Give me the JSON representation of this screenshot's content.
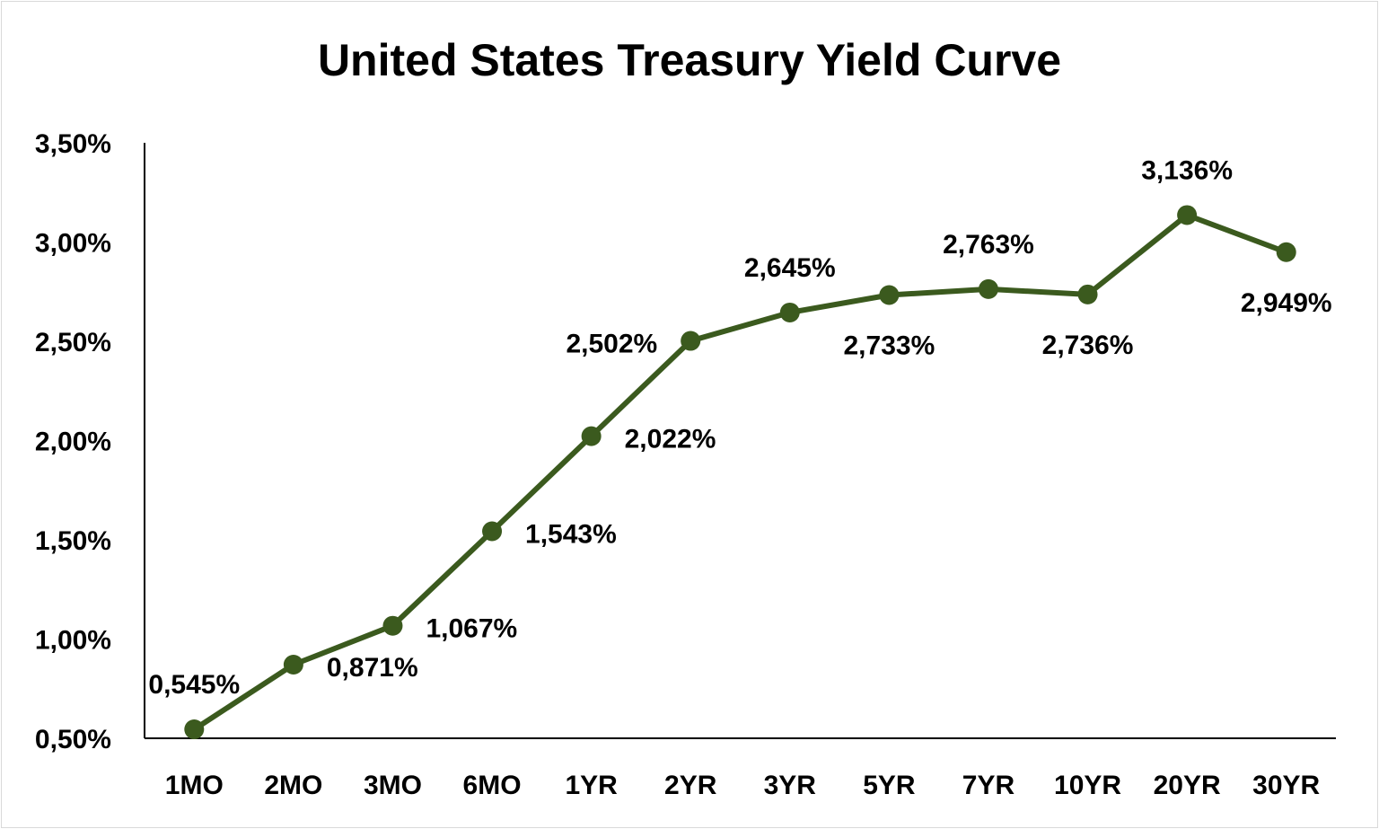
{
  "chart_data": {
    "type": "line",
    "title": "United States Treasury Yield Curve",
    "xlabel": "",
    "ylabel": "",
    "categories": [
      "1MO",
      "2MO",
      "3MO",
      "6MO",
      "1YR",
      "2YR",
      "3YR",
      "5YR",
      "7YR",
      "10YR",
      "20YR",
      "30YR"
    ],
    "series": [
      {
        "values": [
          0.545,
          0.871,
          1.067,
          1.543,
          2.022,
          2.502,
          2.645,
          2.733,
          2.763,
          2.736,
          3.136,
          2.949
        ],
        "data_labels": [
          "0,545%",
          "0,871%",
          "1,067%",
          "1,543%",
          "2,022%",
          "2,502%",
          "2,645%",
          "2,733%",
          "2,763%",
          "2,736%",
          "3,136%",
          "2,949%"
        ],
        "label_positions": [
          "above",
          "right",
          "right",
          "right",
          "right",
          "left",
          "above",
          "below",
          "above",
          "below",
          "above",
          "below"
        ],
        "color": "#3b5a1e"
      }
    ],
    "ylim": [
      0.5,
      3.5
    ],
    "yticks": [
      0.5,
      1.0,
      1.5,
      2.0,
      2.5,
      3.0,
      3.5
    ],
    "ytick_labels": [
      "0,50%",
      "1,00%",
      "1,50%",
      "2,00%",
      "2,50%",
      "3,00%",
      "3,50%"
    ],
    "grid": false,
    "legend": "none",
    "axis_color": "#000000",
    "background": "#ffffff"
  }
}
